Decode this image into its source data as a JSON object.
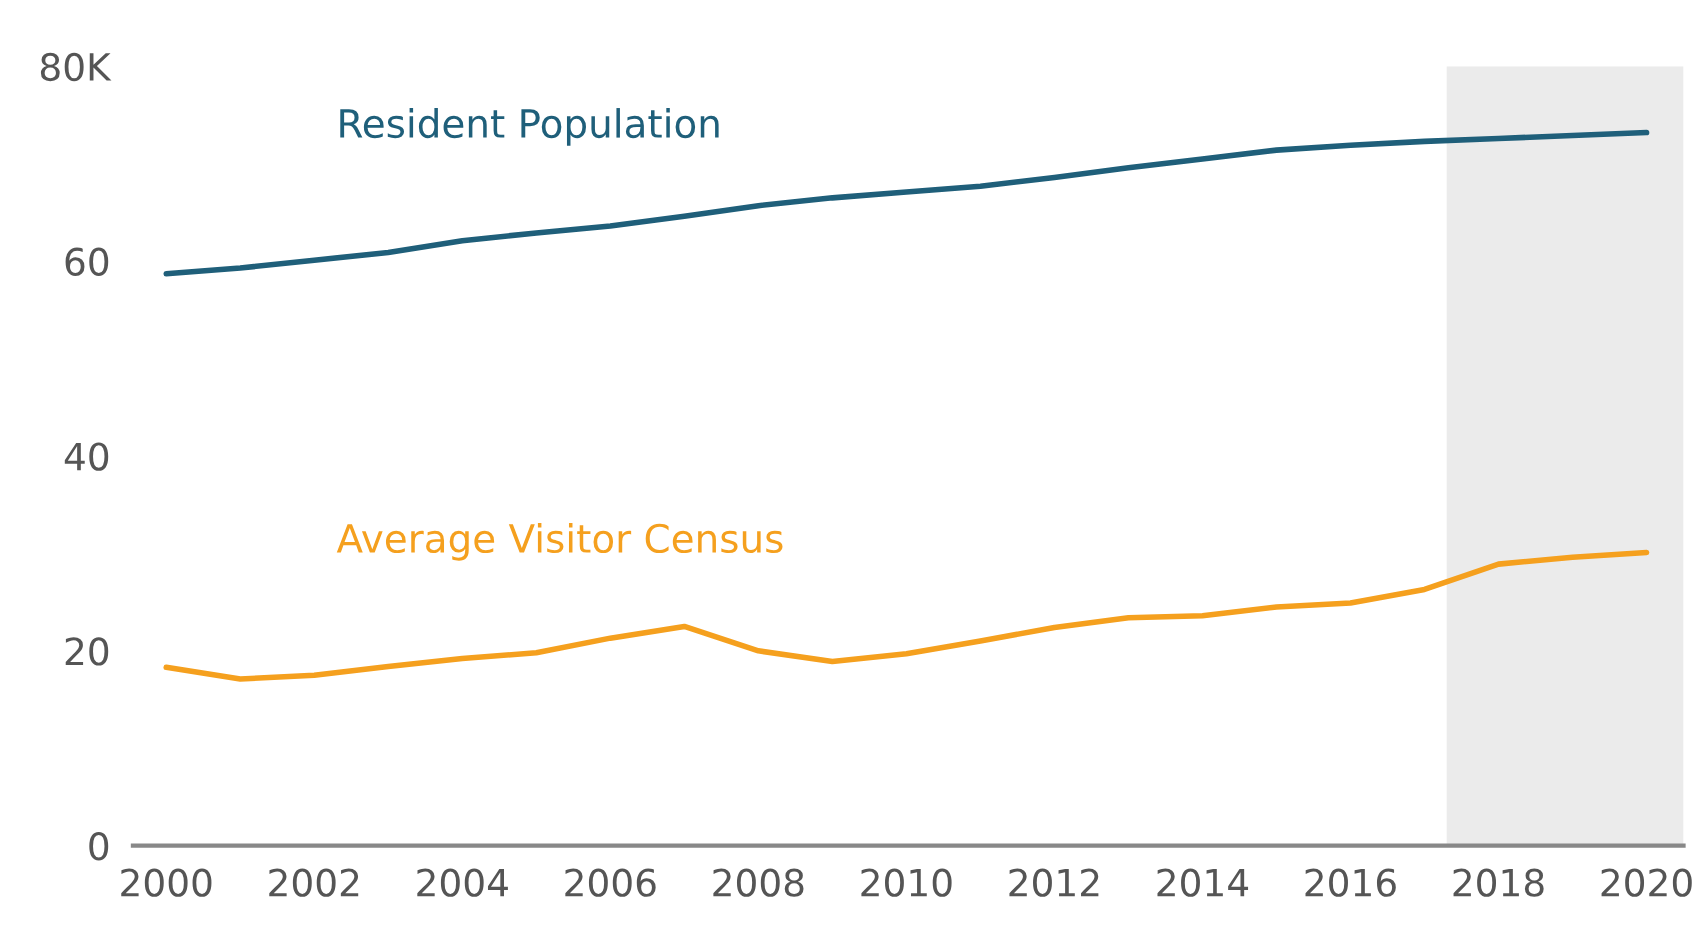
{
  "chart_data": {
    "type": "line",
    "x": [
      2000,
      2001,
      2002,
      2003,
      2004,
      2005,
      2006,
      2007,
      2008,
      2009,
      2010,
      2011,
      2012,
      2013,
      2014,
      2015,
      2016,
      2017,
      2018,
      2019,
      2020
    ],
    "series": [
      {
        "name": "Resident Population",
        "color": "#1f5f7a",
        "values": [
          58.7,
          59.3,
          60.1,
          60.9,
          62.1,
          62.9,
          63.6,
          64.6,
          65.7,
          66.5,
          67.1,
          67.7,
          68.6,
          69.6,
          70.5,
          71.4,
          71.9,
          72.3,
          72.6,
          72.9,
          73.2
        ]
      },
      {
        "name": "Average Visitor Census",
        "color": "#f5a01e",
        "values": [
          18.3,
          17.1,
          17.5,
          18.4,
          19.2,
          19.8,
          21.3,
          22.5,
          20.0,
          18.9,
          19.7,
          21.0,
          22.4,
          23.4,
          23.6,
          24.5,
          24.9,
          26.3,
          28.9,
          29.6,
          30.1
        ]
      }
    ],
    "xlim": [
      1999.55,
      2020.5
    ],
    "xticks": [
      2000,
      2002,
      2004,
      2006,
      2008,
      2010,
      2012,
      2014,
      2016,
      2018,
      2020
    ],
    "ylim": [
      0,
      80
    ],
    "yticks": [
      0,
      20,
      40,
      60,
      {
        "value": 80,
        "label": "80K"
      }
    ],
    "bands": [
      {
        "axis": "x",
        "from": 2017.3,
        "to": 2020.5,
        "color": "#ebebeb"
      }
    ],
    "grid": false,
    "legend": false
  }
}
